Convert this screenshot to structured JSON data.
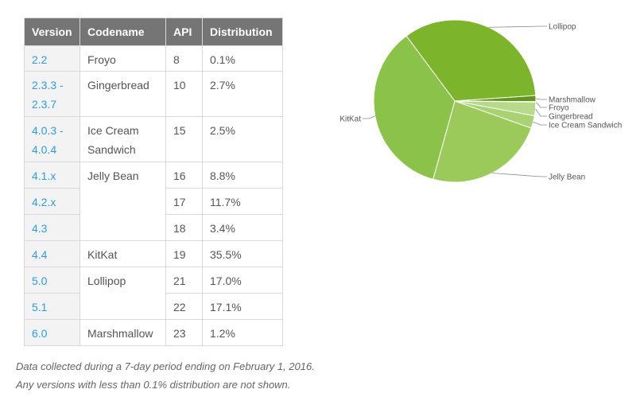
{
  "table": {
    "headers": [
      "Version",
      "Codename",
      "API",
      "Distribution"
    ],
    "rows": [
      {
        "version": "2.2",
        "codename": "Froyo",
        "api": "8",
        "dist": "0.1%"
      },
      {
        "version": "2.3.3 -\n2.3.7",
        "codename": "Gingerbread",
        "api": "10",
        "dist": "2.7%"
      },
      {
        "version": "4.0.3 -\n4.0.4",
        "codename": "Ice Cream\nSandwich",
        "api": "15",
        "dist": "2.5%"
      },
      {
        "version": "4.1.x",
        "codename": "Jelly Bean",
        "api": "16",
        "dist": "8.8%"
      },
      {
        "version": "4.2.x",
        "codename": "",
        "api": "17",
        "dist": "11.7%"
      },
      {
        "version": "4.3",
        "codename": "",
        "api": "18",
        "dist": "3.4%"
      },
      {
        "version": "4.4",
        "codename": "KitKat",
        "api": "19",
        "dist": "35.5%"
      },
      {
        "version": "5.0",
        "codename": "Lollipop",
        "api": "21",
        "dist": "17.0%"
      },
      {
        "version": "5.1",
        "codename": "",
        "api": "22",
        "dist": "17.1%"
      },
      {
        "version": "6.0",
        "codename": "Marshmallow",
        "api": "23",
        "dist": "1.2%"
      }
    ]
  },
  "notes": {
    "line1": "Data collected during a 7-day period ending on February 1, 2016.",
    "line2": "Any versions with less than 0.1% distribution are not shown."
  },
  "chart_data": {
    "type": "pie",
    "title": "",
    "slices": [
      {
        "label": "Lollipop",
        "value": 34.1,
        "color": "#7cb52b"
      },
      {
        "label": "Marshmallow",
        "value": 1.2,
        "color": "#60971a"
      },
      {
        "label": "Froyo",
        "value": 0.1,
        "color": "#a6ce6a"
      },
      {
        "label": "Gingerbread",
        "value": 2.7,
        "color": "#b6d98a"
      },
      {
        "label": "Ice Cream Sandwich",
        "value": 2.5,
        "color": "#a9d371"
      },
      {
        "label": "Jelly Bean",
        "value": 23.9,
        "color": "#9cca5a"
      },
      {
        "label": "KitKat",
        "value": 35.5,
        "color": "#8bc34a"
      }
    ]
  }
}
